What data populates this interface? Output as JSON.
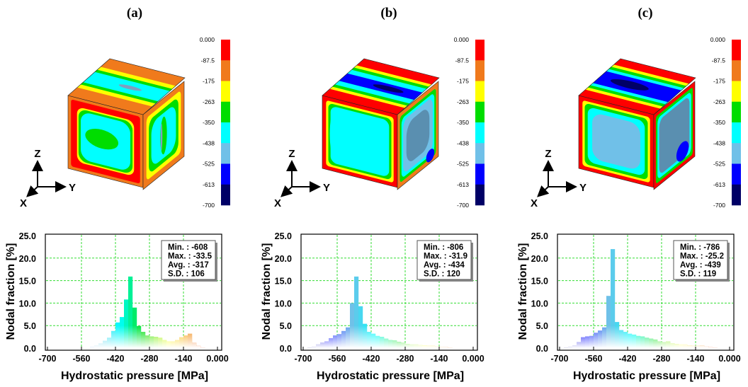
{
  "colormap": [
    "#ff0000",
    "#f07a1c",
    "#ffff00",
    "#00dd00",
    "#00ffff",
    "#70c0e8",
    "#0000ff",
    "#000066"
  ],
  "colorbar_labels": [
    "0.000",
    "-87.5",
    "-175",
    "-263",
    "-350",
    "-438",
    "-525",
    "-613",
    "-700"
  ],
  "axes_triad": {
    "z": "Z",
    "y": "Y",
    "x": "X"
  },
  "chart_data": [
    {
      "type": "bar",
      "title": "(a)",
      "xlabel": "Hydrostatic pressure [MPa]",
      "ylabel": "Nodal fraction [%]",
      "xlim": [
        -700,
        0
      ],
      "ylim": [
        0,
        25
      ],
      "x_ticks": [
        "-700",
        "-560",
        "-420",
        "-280",
        "-140",
        "0.000"
      ],
      "y_ticks": [
        "0.0",
        "5.0",
        "10.0",
        "15.0",
        "20.0",
        "25.0"
      ],
      "grid": true,
      "bin_width": 17.5,
      "bin_start": -700,
      "values": [
        0,
        0,
        0,
        0,
        0,
        0,
        0,
        0,
        0,
        0,
        0.3,
        0.5,
        1.0,
        1.6,
        2.3,
        3.8,
        5.7,
        6.9,
        10.8,
        15.9,
        9.0,
        4.9,
        3.6,
        2.8,
        2.6,
        2.5,
        2.3,
        1.8,
        1.5,
        1.5,
        1.8,
        2.4,
        2.8,
        3.2,
        1.2,
        0.5,
        0.1,
        0,
        0,
        0
      ],
      "stats": [
        "Min. : -608",
        "Max. : -33.5",
        "Avg. : -317",
        "S.D. : 106"
      ]
    },
    {
      "type": "bar",
      "title": "(b)",
      "xlabel": "Hydrostatic pressure [MPa]",
      "ylabel": "Nodal fraction [%]",
      "xlim": [
        -700,
        0
      ],
      "ylim": [
        0,
        25
      ],
      "x_ticks": [
        "-700",
        "-560",
        "-420",
        "-280",
        "-140",
        "0.000"
      ],
      "y_ticks": [
        "0.0",
        "5.0",
        "10.0",
        "15.0",
        "20.0",
        "25.0"
      ],
      "grid": true,
      "bin_width": 17.5,
      "bin_start": -700,
      "values": [
        0,
        0.1,
        0.3,
        0.8,
        1.2,
        1.5,
        2.2,
        2.8,
        3.1,
        3.8,
        4.6,
        10.0,
        15.9,
        9.3,
        5.4,
        3.6,
        3.2,
        2.7,
        2.5,
        2.1,
        1.8,
        1.7,
        1.4,
        1.2,
        0.9,
        0.8,
        0.8,
        0.7,
        0.6,
        0.5,
        0.5,
        0.4,
        0.3,
        0.3,
        0.1,
        0,
        0,
        0,
        0,
        0
      ],
      "stats": [
        "Min. : -806",
        "Max. : -31.9",
        "Avg. : -434",
        "S.D. : 120"
      ]
    },
    {
      "type": "bar",
      "title": "(c)",
      "xlabel": "Hydrostatic pressure [MPa]",
      "ylabel": "Nodal fraction [%]",
      "xlim": [
        -700,
        0
      ],
      "ylim": [
        0,
        25
      ],
      "x_ticks": [
        "-700",
        "-560",
        "-420",
        "-280",
        "-140",
        "0.000"
      ],
      "y_ticks": [
        "0.0",
        "5.0",
        "10.0",
        "15.0",
        "20.0",
        "25.0"
      ],
      "grid": true,
      "bin_width": 17.5,
      "bin_start": -700,
      "values": [
        0,
        0.1,
        0.3,
        0.5,
        1.3,
        2.4,
        2.6,
        2.7,
        3.4,
        3.9,
        4.6,
        11.6,
        22.0,
        5.8,
        4.0,
        3.6,
        3.2,
        3.0,
        2.7,
        2.6,
        2.3,
        2.1,
        1.9,
        1.5,
        1.3,
        1.5,
        1.1,
        0.9,
        0.8,
        0.8,
        0.6,
        0.5,
        0.5,
        0.6,
        0.4,
        0.2,
        0.1,
        0,
        0,
        0
      ],
      "stats": [
        "Min. : -786",
        "Max. : -25.2",
        "Avg. : -439",
        "S.D. : 119"
      ]
    }
  ]
}
